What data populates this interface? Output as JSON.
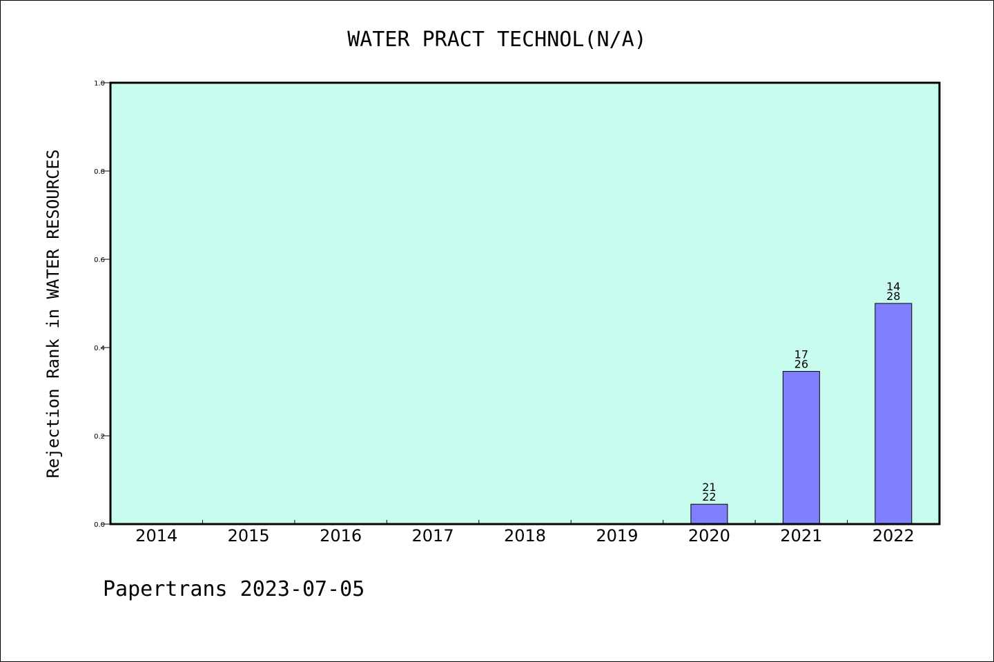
{
  "chart_data": {
    "type": "bar",
    "title": "WATER PRACT TECHNOL(N/A)",
    "ylabel": "Rejection Rank in WATER RESOURCES",
    "xlabel": "",
    "categories": [
      "2014",
      "2015",
      "2016",
      "2017",
      "2018",
      "2019",
      "2020",
      "2021",
      "2022"
    ],
    "values": [
      0,
      0,
      0,
      0,
      0,
      0,
      0.045,
      0.346,
      0.5
    ],
    "bar_labels": [
      null,
      null,
      null,
      null,
      null,
      null,
      [
        "21",
        "22"
      ],
      [
        "17",
        "26"
      ],
      [
        "14",
        "28"
      ]
    ],
    "ylim": [
      0,
      1.0
    ],
    "yticks": [
      "0.0",
      "0.2",
      "0.4",
      "0.6",
      "0.8",
      "1.0"
    ],
    "ytick_values": [
      0,
      0.2,
      0.4,
      0.6,
      0.8,
      1.0
    ],
    "grid": false,
    "plot_background": "#c8fcee",
    "bar_color": "#8080ff",
    "footer": "Papertrans 2023-07-05"
  }
}
